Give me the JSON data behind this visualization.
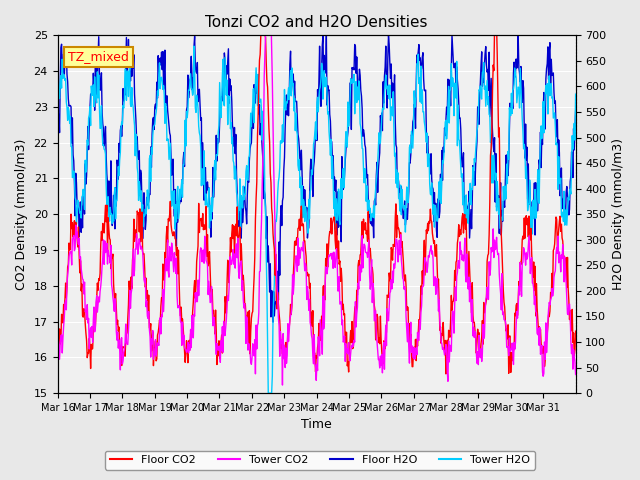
{
  "title": "Tonzi CO2 and H2O Densities",
  "xlabel": "Time",
  "ylabel_left": "CO2 Density (mmol/m3)",
  "ylabel_right": "H2O Density (mmol/m3)",
  "ylim_left": [
    15.0,
    25.0
  ],
  "ylim_right": [
    0,
    700
  ],
  "yticks_left": [
    15.0,
    16.0,
    17.0,
    18.0,
    19.0,
    20.0,
    21.0,
    22.0,
    23.0,
    24.0,
    25.0
  ],
  "yticks_right": [
    0,
    50,
    100,
    150,
    200,
    250,
    300,
    350,
    400,
    450,
    500,
    550,
    600,
    650,
    700
  ],
  "xtick_labels": [
    "Mar 16",
    "Mar 17",
    "Mar 18",
    "Mar 19",
    "Mar 20",
    "Mar 21",
    "Mar 22",
    "Mar 23",
    "Mar 24",
    "Mar 25",
    "Mar 26",
    "Mar 27",
    "Mar 28",
    "Mar 29",
    "Mar 30",
    "Mar 31"
  ],
  "legend_labels": [
    "Floor CO2",
    "Tower CO2",
    "Floor H2O",
    "Tower H2O"
  ],
  "legend_colors": [
    "#ff0000",
    "#ff00ff",
    "#0000cc",
    "#00ccff"
  ],
  "annotation_text": "TZ_mixed",
  "annotation_bg": "#ffff99",
  "annotation_border": "#cc8800",
  "bg_color": "#e8e8e8",
  "plot_bg": "#f0f0f0",
  "grid_color": "#ffffff",
  "linewidth": 1.0,
  "n_days": 16,
  "n_pts_per_day": 48
}
